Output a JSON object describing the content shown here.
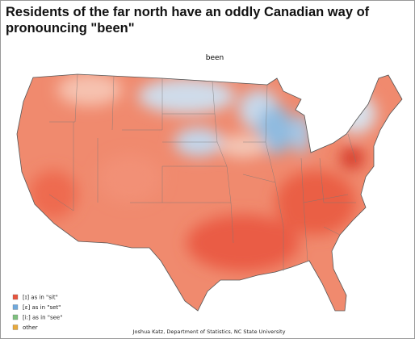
{
  "header": {
    "title": "Residents of the far north have an oddly Canadian way of pronouncing \"been\""
  },
  "map": {
    "label": "been",
    "legend": [
      {
        "label": "[ɪ] as in \"sit\"",
        "color": "#e8553f"
      },
      {
        "label": "[ɛ] as in \"set\"",
        "color": "#6fa8dc"
      },
      {
        "label": "[i:] as in \"see\"",
        "color": "#7ec07e"
      },
      {
        "label": "other",
        "color": "#e8a93c"
      }
    ],
    "credit": "Joshua Katz, Department of Statistics, NC State University"
  }
}
